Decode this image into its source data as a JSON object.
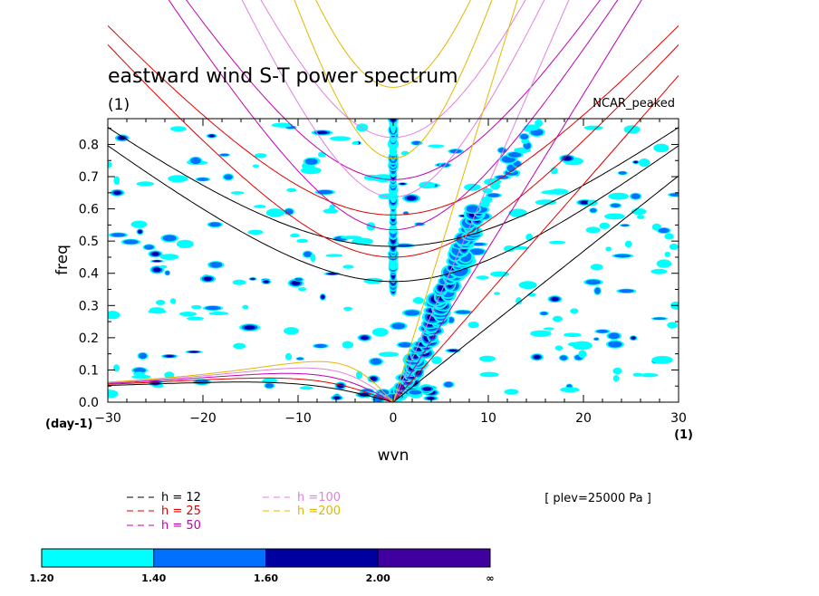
{
  "header": {
    "title": "eastward wind S-T power spectrum",
    "units": "(1)",
    "dataset": "NCAR_peaked"
  },
  "axes": {
    "xlabel": "wvn",
    "ylabel": "freq",
    "x_unit_left": "(day-1)",
    "x_unit_right": "(1)"
  },
  "legend": {
    "entries": [
      {
        "label": "h = 12",
        "color": "#000000"
      },
      {
        "label": "h = 25",
        "color": "#e00000"
      },
      {
        "label": "h = 50",
        "color": "#c000b0"
      },
      {
        "label": "h =100",
        "color": "#e080e0"
      },
      {
        "label": "h =200",
        "color": "#e0b800"
      }
    ]
  },
  "annotation": "[ plev=25000 Pa ]",
  "colorbar": {
    "colors": [
      "#00ffff",
      "#0070ff",
      "#0000a0",
      "#4000a0"
    ],
    "labels": [
      "1.20",
      "1.40",
      "1.60",
      "2.00",
      "∞"
    ]
  },
  "chart_data": {
    "type": "heatmap",
    "title": "eastward wind S-T power spectrum",
    "xlabel": "wvn",
    "ylabel": "freq",
    "xlim": [
      -30,
      30
    ],
    "ylim": [
      0,
      0.88
    ],
    "xticks": [
      -30,
      -20,
      -10,
      0,
      10,
      20,
      30
    ],
    "yticks": [
      0.0,
      0.1,
      0.2,
      0.3,
      0.4,
      0.5,
      0.6,
      0.7,
      0.8
    ],
    "contour_levels": [
      1.2,
      1.4,
      1.6,
      2.0
    ],
    "dispersion_curves": [
      {
        "name": "h = 12",
        "equivalent_depth": 12,
        "color": "#000000"
      },
      {
        "name": "h = 25",
        "equivalent_depth": 25,
        "color": "#e00000"
      },
      {
        "name": "h = 50",
        "equivalent_depth": 50,
        "color": "#c000b0"
      },
      {
        "name": "h =100",
        "equivalent_depth": 100,
        "color": "#e080e0"
      },
      {
        "name": "h =200",
        "equivalent_depth": 200,
        "color": "#e0b800"
      }
    ],
    "kelvin_band": {
      "from": [
        1,
        0.02
      ],
      "to": [
        9,
        0.6
      ]
    },
    "zonal_mean_column": {
      "x": 0,
      "from": 0.35,
      "to": 0.88
    }
  }
}
